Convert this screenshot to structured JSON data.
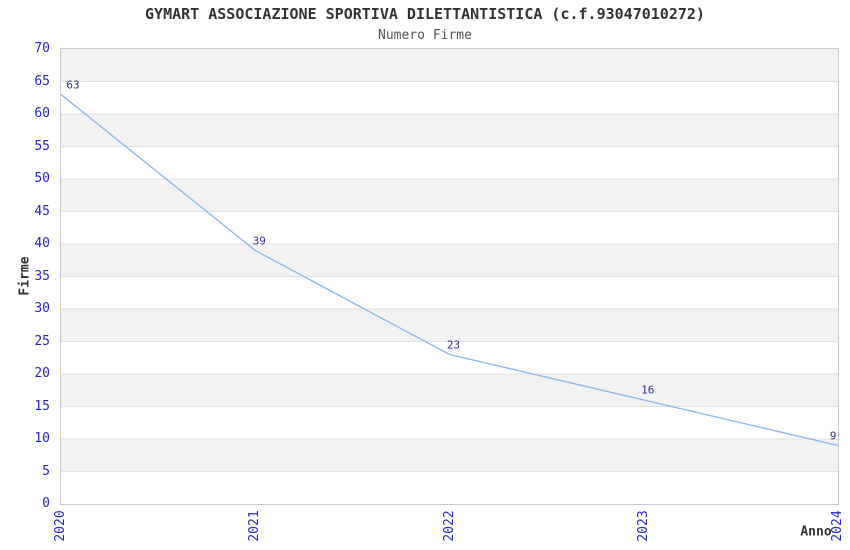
{
  "header": {
    "title": "GYMART ASSOCIAZIONE SPORTIVA DILETTANTISTICA (c.f.93047010272)",
    "subtitle": "Numero Firme"
  },
  "chart_data": {
    "type": "line",
    "title": "GYMART ASSOCIAZIONE SPORTIVA DILETTANTISTICA (c.f.93047010272)",
    "subtitle": "Numero Firme",
    "xlabel": "Anno",
    "ylabel": "Firme",
    "x": [
      "2020",
      "2021",
      "2022",
      "2023",
      "2024"
    ],
    "values": [
      63,
      39,
      23,
      16,
      9
    ],
    "data_labels": [
      "63",
      "39",
      "23",
      "16",
      "9"
    ],
    "ylim": [
      0,
      70
    ],
    "ytick_step": 5,
    "yticks": [
      0,
      5,
      10,
      15,
      20,
      25,
      30,
      35,
      40,
      45,
      50,
      55,
      60,
      65,
      70
    ],
    "grid": "horizontal-bands",
    "legend": "none",
    "colors": {
      "line": "#8ab7e6",
      "tick_label": "#2626cc",
      "data_label": "#303080",
      "axis_label": "#333333",
      "title": "#333333",
      "subtitle": "#555555",
      "band": "#f2f2f2",
      "gridline": "#e2e2e2",
      "border": "#c9c9c9"
    }
  }
}
